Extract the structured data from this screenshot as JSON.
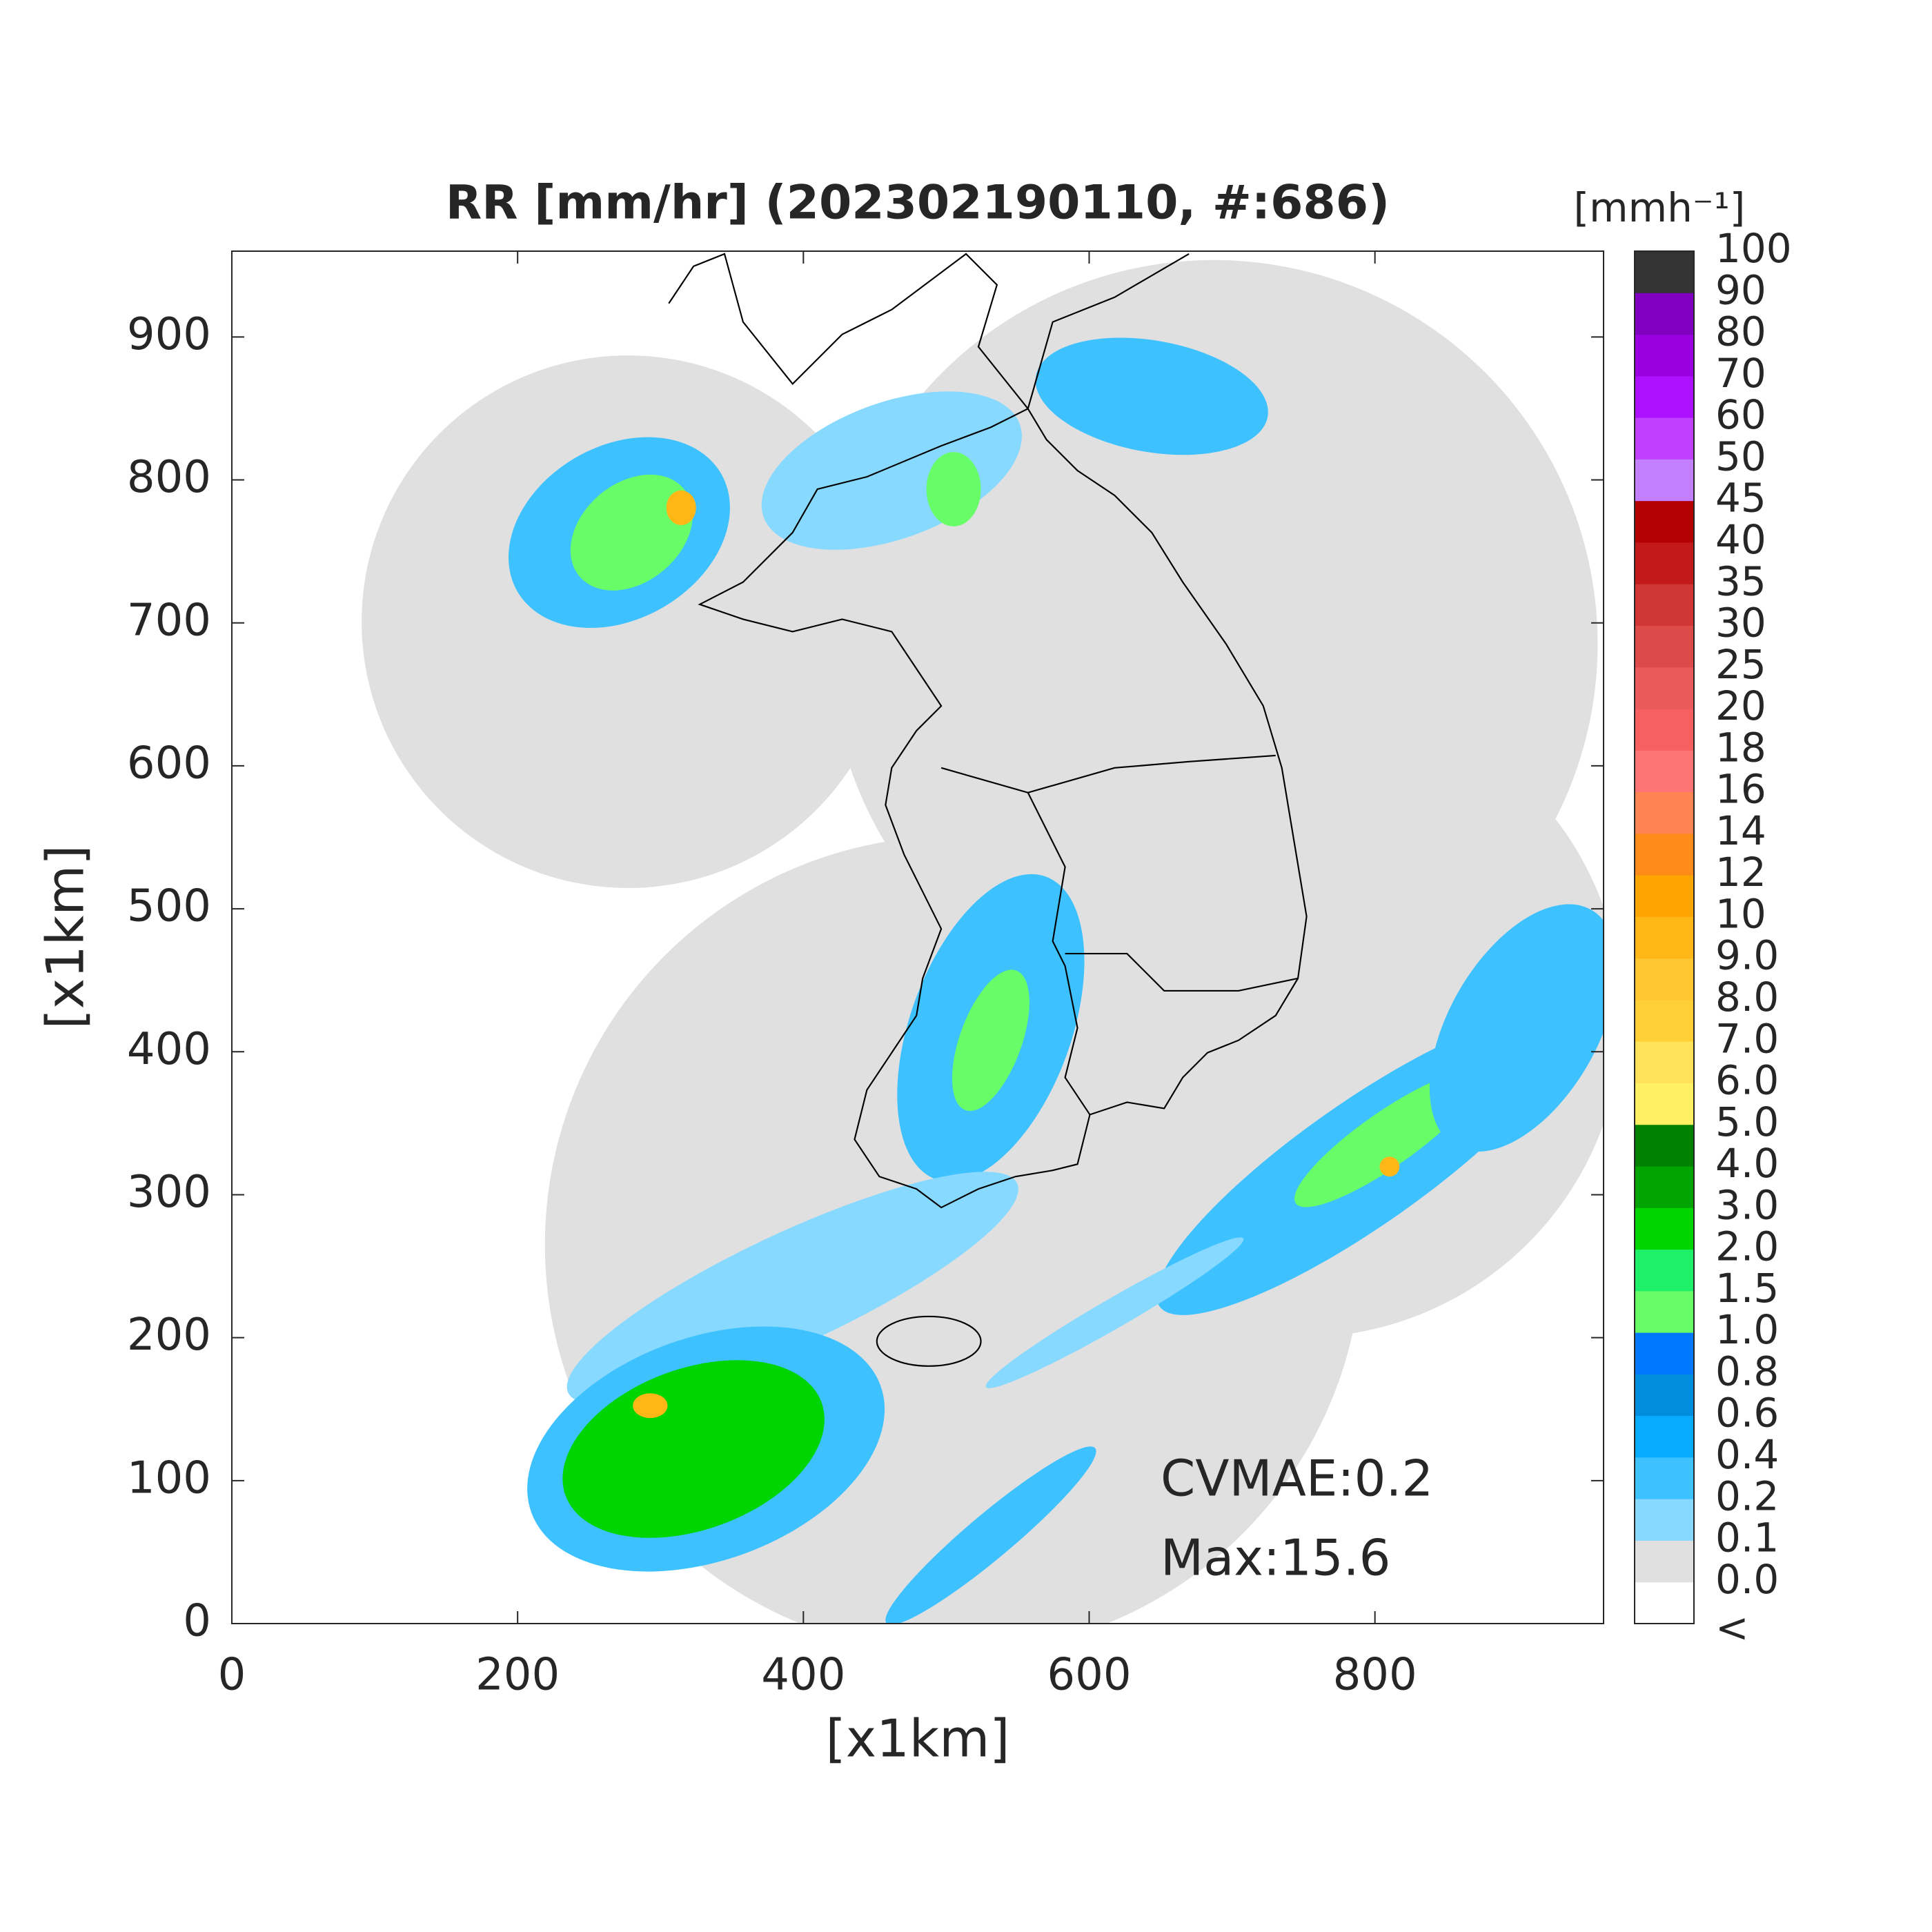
{
  "chart_data": {
    "type": "radar-map",
    "title": "RR [mm/hr] (202302190110, #:686)",
    "xlabel": "[x1km]",
    "ylabel": "[x1km]",
    "xlim": [
      0,
      960
    ],
    "ylim": [
      0,
      960
    ],
    "xticks": [
      0,
      200,
      400,
      600,
      800
    ],
    "yticks": [
      0,
      100,
      200,
      300,
      400,
      500,
      600,
      700,
      800,
      900
    ],
    "annotations": [
      "CVMAE:0.2",
      "Max:15.6"
    ],
    "colorbar": {
      "title": "[mmh⁻¹]",
      "labels": [
        "<",
        "0.0",
        "0.1",
        "0.2",
        "0.4",
        "0.6",
        "0.8",
        "1.0",
        "1.5",
        "2.0",
        "3.0",
        "4.0",
        "5.0",
        "6.0",
        "7.0",
        "8.0",
        "9.0",
        "10",
        "12",
        "14",
        "16",
        "18",
        "20",
        "25",
        "30",
        "35",
        "40",
        "45",
        "50",
        "60",
        "70",
        "80",
        "90",
        "100"
      ],
      "colors": [
        "#ffffff",
        "#e0e0e0",
        "#87d9ff",
        "#3ec1ff",
        "#07abff",
        "#008dde",
        "#0077ff",
        "#69fc69",
        "#1ef06a",
        "#00d500",
        "#00a400",
        "#008000",
        "#fff064",
        "#ffe15a",
        "#ffd036",
        "#ffc62f",
        "#ffb718",
        "#ffa500",
        "#ff8c1a",
        "#ff8452",
        "#ff7575",
        "#f76060",
        "#ea5a5a",
        "#dc4a4a",
        "#d03636",
        "#c21a1a",
        "#b30000",
        "#c27fff",
        "#c040ff",
        "#ad10ff",
        "#9800e0",
        "#7f00bf",
        "#333333"
      ]
    }
  }
}
